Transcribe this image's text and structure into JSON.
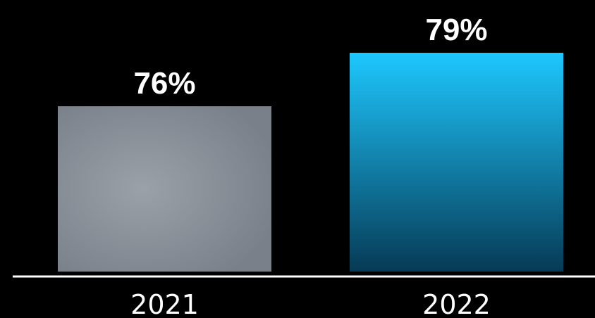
{
  "chart_data": {
    "type": "bar",
    "categories": [
      "2021",
      "2022"
    ],
    "values": [
      76,
      79
    ],
    "value_labels": [
      "76%",
      "79%"
    ],
    "unit": "%",
    "colors": {
      "background": "#000000",
      "axis": "#ffffff",
      "text": "#ffffff",
      "bar_2021_center": "#9aa1a8",
      "bar_2021_edge": "#79808a",
      "bar_2022_top": "#1ec8ff",
      "bar_2022_bottom": "#063a55"
    },
    "grid": false,
    "legend": "none"
  }
}
